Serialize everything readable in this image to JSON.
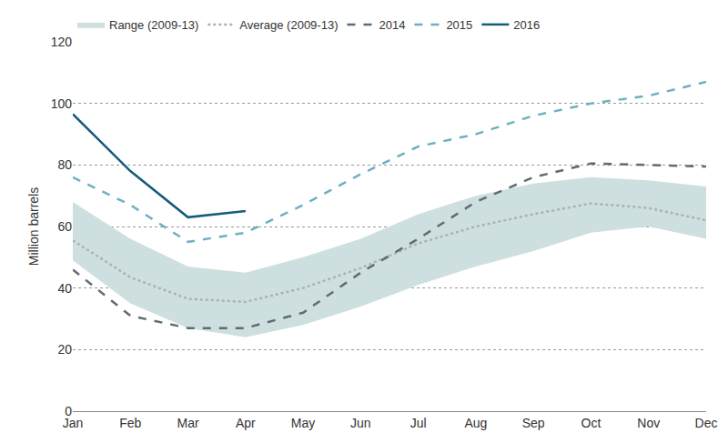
{
  "chart_data": {
    "type": "line",
    "y_label": "Million barrels",
    "categories": [
      "Jan",
      "Feb",
      "Mar",
      "Apr",
      "May",
      "Jun",
      "Jul",
      "Aug",
      "Sep",
      "Oct",
      "Nov",
      "Dec"
    ],
    "ylim": [
      0,
      120
    ],
    "yticks": [
      0,
      20,
      40,
      60,
      80,
      100,
      120
    ],
    "grid": true,
    "legend": "top",
    "series": [
      {
        "name": "Range (2009-13)",
        "type": "range",
        "color": "#cde0df",
        "lower": [
          49,
          35,
          27,
          24,
          28,
          34,
          41,
          47,
          52,
          58,
          60,
          56
        ],
        "upper": [
          68,
          56,
          47,
          45,
          50,
          56,
          64,
          70,
          74,
          76,
          75,
          73
        ]
      },
      {
        "name": "Average (2009-13)",
        "type": "line",
        "color": "#b0b0b0",
        "line_style": "dot",
        "values": [
          55.5,
          43.5,
          36.5,
          35.5,
          40,
          46.5,
          54.5,
          60,
          64,
          67.5,
          66,
          62
        ]
      },
      {
        "name": "2014",
        "type": "line",
        "color": "#5f6b73",
        "line_style": "dash",
        "values": [
          46,
          31,
          27,
          27,
          32,
          45,
          56,
          68,
          76,
          80.5,
          80,
          79.5
        ]
      },
      {
        "name": "2015",
        "type": "line",
        "color": "#6fb0c0",
        "line_style": "dash",
        "values": [
          76,
          67,
          55,
          58,
          67,
          77,
          86,
          90,
          96,
          100,
          102.5,
          107
        ]
      },
      {
        "name": "2016",
        "type": "line",
        "color": "#135d79",
        "line_style": "solid",
        "values": [
          96.5,
          78,
          63,
          65,
          null,
          null,
          null,
          null,
          null,
          null,
          null,
          null
        ]
      }
    ]
  }
}
